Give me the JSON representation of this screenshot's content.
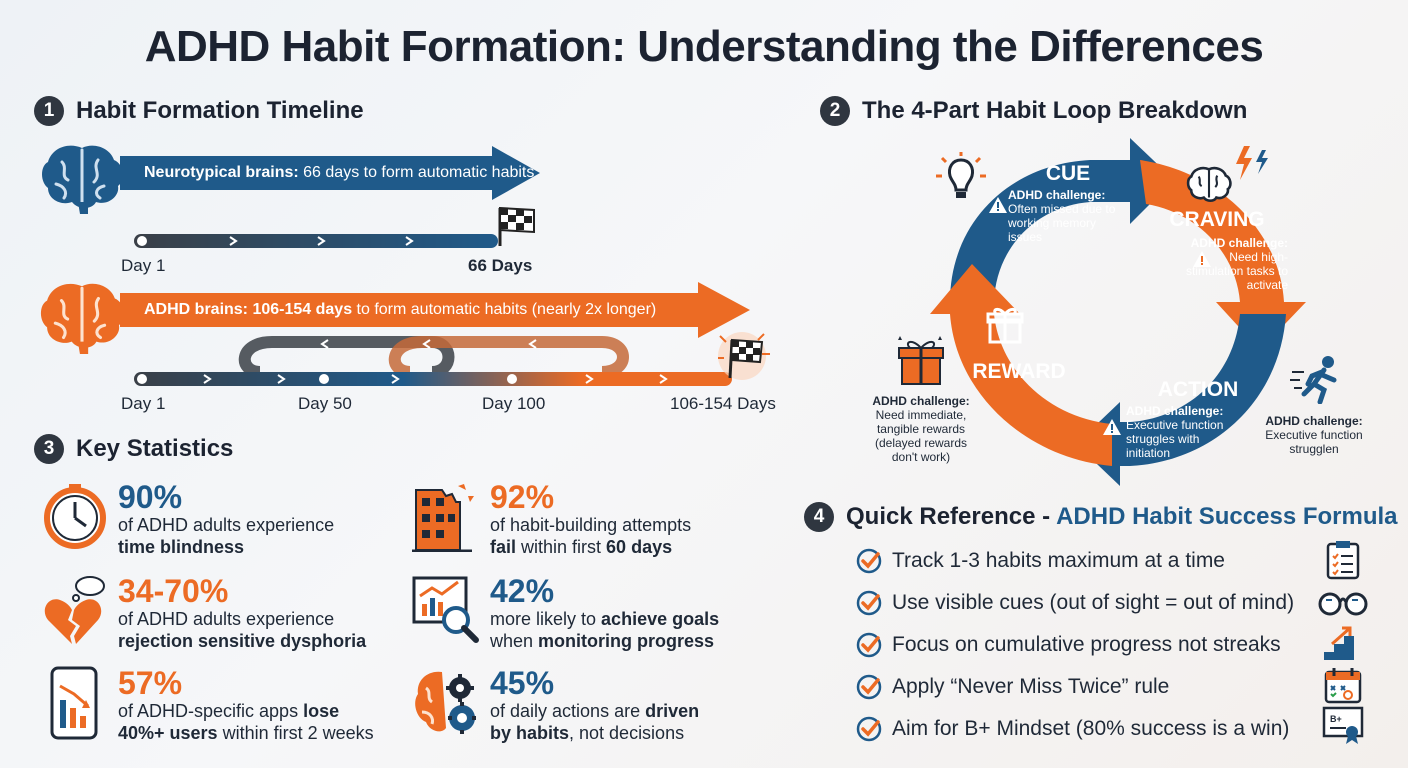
{
  "title": "ADHD Habit Formation: Understanding the Differences",
  "section1": {
    "num": "1",
    "heading": "Habit Formation Timeline",
    "neuro_bold": "Neurotypical brains:",
    "neuro_rest": " 66 days to form automatic habits",
    "neuro_start": "Day 1",
    "neuro_end": "66 Days",
    "adhd_bold": "ADHD brains: 106-154 days",
    "adhd_rest": " to form automatic habits (nearly 2x longer)",
    "adhd_ticks": [
      "Day 1",
      "Day 50",
      "Day 100",
      "106-154 Days"
    ],
    "neuro_progress_fraction": 0.43,
    "adhd_progress_fraction": 1.0
  },
  "section2": {
    "num": "2",
    "heading": "The 4-Part Habit Loop Breakdown",
    "cue": {
      "title": "CUE",
      "challenge_label": "ADHD challenge:",
      "challenge_text": "Often missed due to working memory issues"
    },
    "craving": {
      "title": "CRAVING",
      "challenge_label": "ADHD challenge:",
      "challenge_text": "Need high-stimulation tasks to activate"
    },
    "action": {
      "title": "ACTION",
      "challenge_label": "ADHD challenge:",
      "challenge_text": "Executive function struggles with initiation"
    },
    "reward": {
      "title": "REWARD"
    },
    "reward_note": {
      "label": "ADHD challenge:",
      "text": "Need immediate, tangible rewards (delayed rewards don't work)"
    },
    "action_note": {
      "label": "ADHD challenge:",
      "text": "Executive function strugglen"
    }
  },
  "section3": {
    "num": "3",
    "heading": "Key Statistics",
    "stats": [
      {
        "value": "90%",
        "line1": "of ADHD adults experience",
        "line2_bold": "time blindness",
        "line2_rest": "",
        "icon": "clock-icon"
      },
      {
        "value": "34-70%",
        "line1": "of ADHD adults experience",
        "line2_bold": "rejection sensitive dysphoria",
        "line2_rest": "",
        "icon": "broken-heart-icon"
      },
      {
        "value": "57%",
        "line1_pre": "of ADHD-specific apps ",
        "line1_bold": "lose",
        "line2_bold": "40%+ users",
        "line2_rest": " within first 2 weeks",
        "icon": "phone-chart-icon"
      },
      {
        "value": "92%",
        "line1": "of habit-building attempts",
        "line2_bold": "fail",
        "line2_mid": " within first ",
        "line2_bold2": "60 days",
        "icon": "crumbling-building-icon"
      },
      {
        "value": "42%",
        "line1_pre": "more likely to ",
        "line1_bold": "achieve goals",
        "line2_pre": "when ",
        "line2_bold": "monitoring progress",
        "icon": "analytics-magnifier-icon"
      },
      {
        "value": "45%",
        "line1_pre": "of daily actions are ",
        "line1_bold": "driven",
        "line2_bold": "by habits",
        "line2_rest": ", not decisions",
        "icon": "brain-gears-icon"
      }
    ]
  },
  "section4": {
    "num": "4",
    "heading_dark": "Quick Reference - ",
    "heading_blue": "ADHD Habit Success Formula",
    "items": [
      {
        "text": "Track 1-3 habits maximum at a time",
        "icon": "clipboard-icon"
      },
      {
        "text": "Use visible cues (out of sight = out of mind)",
        "icon": "glasses-icon"
      },
      {
        "text": "Focus on cumulative progress not streaks",
        "icon": "stairs-icon"
      },
      {
        "text": "Apply “Never Miss Twice” rule",
        "icon": "calendar-icon"
      },
      {
        "text": "Aim for B+ Mindset (80% success is a win)",
        "icon": "certificate-icon"
      }
    ]
  },
  "colors": {
    "blue": "#1f5a8a",
    "orange": "#ec6b24",
    "dark": "#2f3640"
  }
}
